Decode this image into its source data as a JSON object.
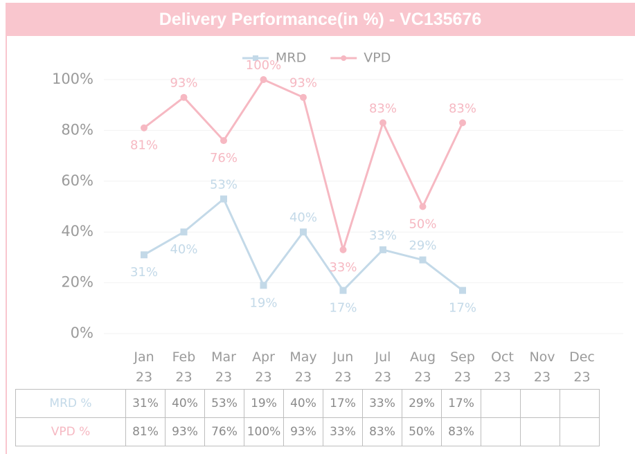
{
  "chart_data": {
    "type": "line",
    "title": "Delivery Performance(in %) - VC135676",
    "categories": [
      "Jan 23",
      "Feb 23",
      "Mar 23",
      "Apr 23",
      "May 23",
      "Jun 23",
      "Jul 23",
      "Aug 23",
      "Sep 23",
      "Oct 23",
      "Nov 23",
      "Dec 23"
    ],
    "series": [
      {
        "name": "MRD",
        "color": "#c3d9e8",
        "marker": "square",
        "values": [
          31,
          40,
          53,
          19,
          40,
          17,
          33,
          29,
          17,
          null,
          null,
          null
        ],
        "value_labels": [
          "31%",
          "40%",
          "53%",
          "19%",
          "40%",
          "17%",
          "33%",
          "29%",
          "17%",
          null,
          null,
          null
        ]
      },
      {
        "name": "VPD",
        "color": "#f6b8c2",
        "marker": "circle",
        "values": [
          81,
          93,
          76,
          100,
          93,
          33,
          83,
          50,
          83,
          null,
          null,
          null
        ],
        "value_labels": [
          "81%",
          "93%",
          "76%",
          "100%",
          "93%",
          "33%",
          "83%",
          "50%",
          "83%",
          null,
          null,
          null
        ]
      }
    ],
    "ylim": [
      0,
      100
    ],
    "yticks": [
      {
        "value": 0,
        "label": "0%"
      },
      {
        "value": 20,
        "label": "20%"
      },
      {
        "value": 40,
        "label": "40%"
      },
      {
        "value": 60,
        "label": "60%"
      },
      {
        "value": 80,
        "label": "80%"
      },
      {
        "value": 100,
        "label": "100%"
      }
    ],
    "grid": true,
    "legend": "top",
    "table_row_labels": [
      "MRD %",
      "VPD %"
    ]
  }
}
